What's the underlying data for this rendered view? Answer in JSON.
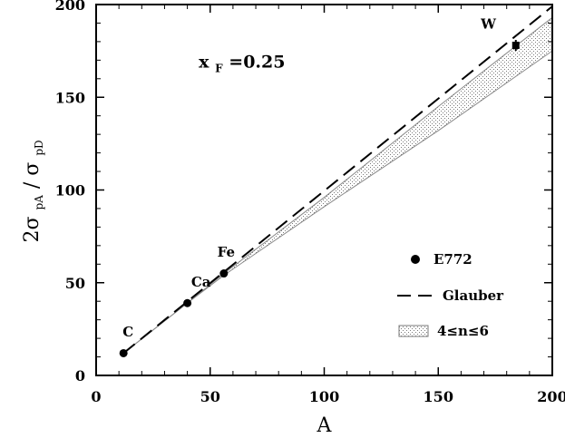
{
  "chart_data": {
    "type": "line",
    "xlabel": "A",
    "ylabel": {
      "base": "2σ",
      "num_sub": "pA",
      "slash": "/",
      "den": "σ",
      "den_sub": "pD"
    },
    "xlim": [
      0,
      200
    ],
    "ylim": [
      0,
      200
    ],
    "x_ticks": [
      "0",
      "50",
      "100",
      "150",
      "200"
    ],
    "y_ticks": [
      "0",
      "50",
      "100",
      "150",
      "200"
    ],
    "grid": false,
    "annotation": {
      "base": "x",
      "sub": "F",
      "rest": "=0.25",
      "x": 45,
      "y": 166
    },
    "points": [
      {
        "label": "C",
        "x": 12,
        "y": 12,
        "label_x": 14,
        "label_y": 21
      },
      {
        "label": "Ca",
        "x": 40,
        "y": 39,
        "label_x": 46,
        "label_y": 48
      },
      {
        "label": "Fe",
        "x": 56,
        "y": 55,
        "label_x": 57,
        "label_y": 64
      },
      {
        "label": "W",
        "x": 184,
        "y": 178,
        "label_x": 172,
        "label_y": 187
      }
    ],
    "band": {
      "name": "4≤n≤6",
      "upper": [
        [
          12,
          12
        ],
        [
          40,
          39
        ],
        [
          56,
          55
        ],
        [
          100,
          96
        ],
        [
          150,
          145
        ],
        [
          200,
          193
        ]
      ],
      "lower": [
        [
          12,
          12
        ],
        [
          40,
          39
        ],
        [
          56,
          54
        ],
        [
          100,
          91
        ],
        [
          150,
          132
        ],
        [
          200,
          175
        ]
      ]
    },
    "glauber_line": {
      "name": "Glauber",
      "x": [
        12,
        200
      ],
      "y": [
        12,
        199
      ]
    },
    "legend": {
      "placement": "bottom-right",
      "entries": [
        "E772",
        "Glauber",
        "4≤n≤6"
      ]
    }
  }
}
